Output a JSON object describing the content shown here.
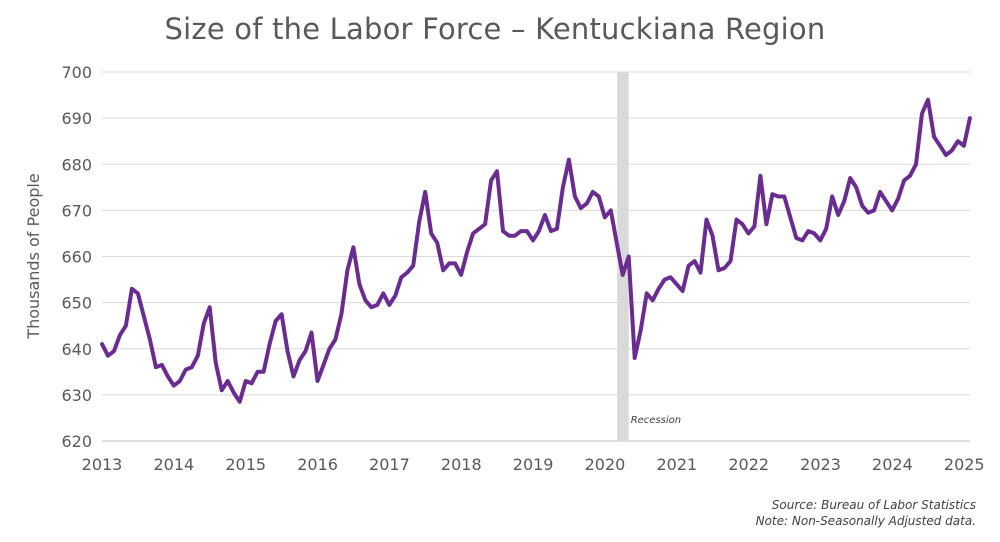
{
  "chart_data": {
    "type": "line",
    "title": "Size of the Labor Force – Kentuckiana Region",
    "ylabel": "Thousands of People",
    "xlabel": "",
    "ylim": [
      620,
      700
    ],
    "xlim": [
      2013,
      2025.08
    ],
    "yticks": [
      620,
      630,
      640,
      650,
      660,
      670,
      680,
      690,
      700
    ],
    "xticks": [
      "2013",
      "2014",
      "2015",
      "2016",
      "2017",
      "2018",
      "2019",
      "2020",
      "2021",
      "2022",
      "2023",
      "2024",
      "2025"
    ],
    "grid": true,
    "line_color": "#6a2c91",
    "recession": {
      "label": "Recession",
      "start": 2020.17,
      "end": 2020.33,
      "color": "#d9d9d9"
    },
    "series": [
      {
        "start": 2013.0,
        "step": 0.0833,
        "values": [
          641,
          638.5,
          639.5,
          643,
          645,
          653,
          652,
          647,
          642,
          636,
          636.5,
          634,
          632,
          633,
          635.5,
          636,
          638.5,
          645.5,
          649,
          637,
          631,
          633,
          630.5,
          628.5,
          633,
          632.5,
          635,
          635,
          641,
          646,
          647.5,
          639.5,
          634,
          637.5,
          639.5,
          643.5,
          633,
          636.5,
          640,
          642,
          647.5,
          657,
          662,
          654,
          650.5,
          649,
          649.5,
          652,
          649.5,
          651.5,
          655.5,
          656.5,
          658,
          667.5,
          674,
          665,
          663,
          657,
          658.5,
          658.5,
          656,
          661,
          665,
          666,
          667,
          676.5,
          678.5,
          665.5,
          664.5,
          664.5,
          665.5,
          665.5,
          663.5,
          665.5,
          669,
          665.5,
          666,
          675,
          681,
          673,
          670.5,
          671.5,
          674,
          673,
          668.5,
          670,
          663,
          656,
          660,
          638,
          644,
          652,
          650.5,
          653,
          655,
          655.5,
          654,
          652.5,
          658,
          659,
          656.5,
          668,
          664.5,
          657,
          657.5,
          659,
          668,
          667,
          665,
          666.5,
          677.5,
          667,
          673.5,
          673,
          673,
          668.5,
          664,
          663.5,
          665.5,
          665,
          663.5,
          666,
          673,
          669,
          672,
          677,
          675,
          671,
          669.5,
          670,
          674,
          672,
          670,
          672.5,
          676.5,
          677.5,
          680,
          691,
          694,
          686,
          684,
          682,
          683,
          685,
          684,
          690
        ]
      }
    ]
  },
  "source": "Source: Bureau of Labor Statistics",
  "note": "Note: Non-Seasonally Adjusted data."
}
